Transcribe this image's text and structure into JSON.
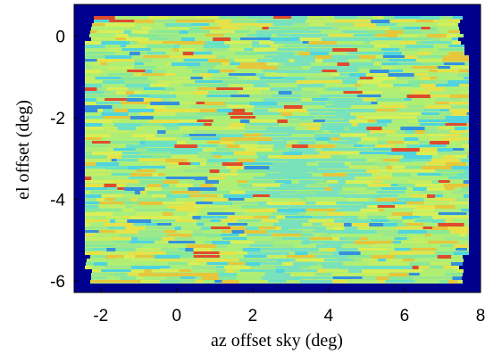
{
  "chart_data": {
    "type": "heatmap",
    "x_label": "az offset sky (deg)",
    "y_label": "el offset (deg)",
    "xlim": [
      -2.7,
      8
    ],
    "ylim": [
      -6.28,
      0.78
    ],
    "xticks": [
      -2,
      0,
      2,
      4,
      6,
      8
    ],
    "yticks": [
      0,
      -2,
      -4,
      -6
    ],
    "background_color": "#00008f"
  }
}
